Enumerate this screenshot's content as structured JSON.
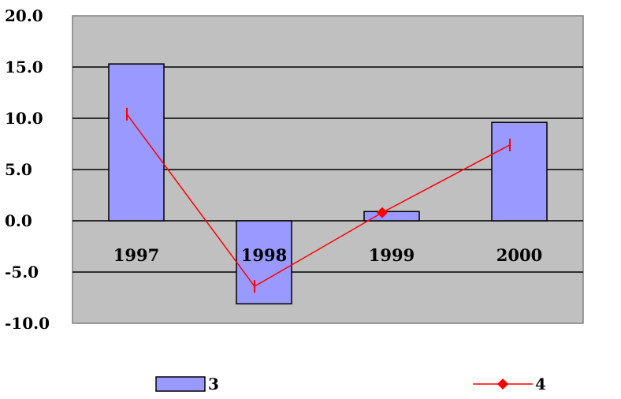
{
  "chart_data": {
    "type": "bar",
    "title": "",
    "xlabel": "",
    "ylabel": "",
    "categories": [
      "1997",
      "1998",
      "1999",
      "2000"
    ],
    "ylim": [
      -10,
      20
    ],
    "yticks": [
      20,
      15,
      10,
      5,
      0,
      -5,
      -10
    ],
    "ytick_labels": [
      "20.0",
      "15.0",
      "10.0",
      "5.0",
      "0.0",
      "-5.0",
      "-10.0"
    ],
    "grid": true,
    "legend_position": "bottom",
    "series": [
      {
        "name": "3",
        "kind": "bar",
        "values": [
          15.3,
          -8.1,
          0.9,
          9.6
        ],
        "color": "#9999FF"
      },
      {
        "name": "4",
        "kind": "line",
        "values": [
          10.4,
          -6.4,
          0.8,
          7.4
        ],
        "color": "#FF0000"
      }
    ],
    "plot_background": "#C0C0C0"
  }
}
